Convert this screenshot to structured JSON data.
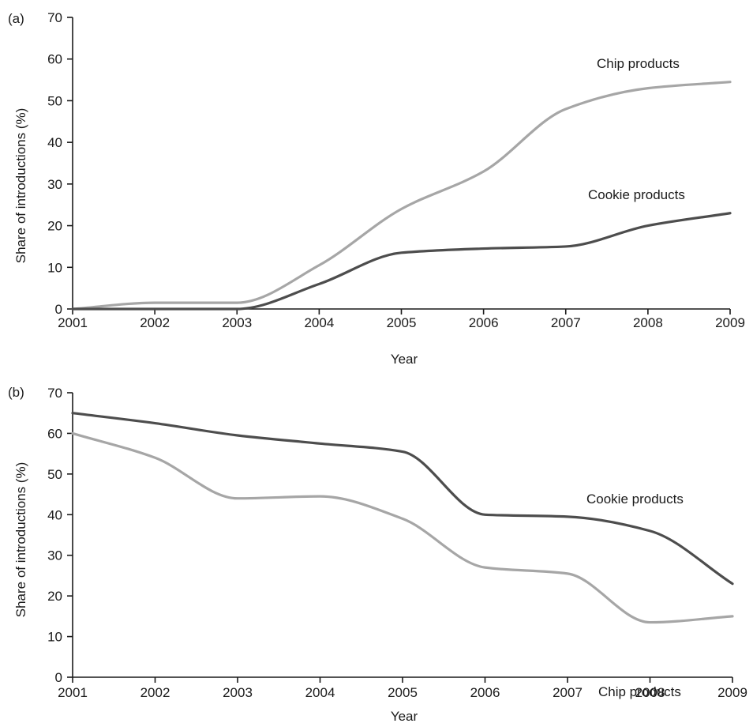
{
  "chart_data": [
    {
      "panel_label": "(a)",
      "type": "line",
      "xlabel": "Year",
      "ylabel": "Share of introductions (%)",
      "xlim": [
        2001,
        2009
      ],
      "ylim": [
        0,
        70
      ],
      "x_ticks": [
        "2001",
        "2002",
        "2003",
        "2004",
        "2005",
        "2006",
        "2007",
        "2008",
        "2009"
      ],
      "y_ticks": [
        "0",
        "10",
        "20",
        "30",
        "40",
        "50",
        "60",
        "70"
      ],
      "x": [
        2001,
        2002,
        2003,
        2004,
        2005,
        2006,
        2007,
        2008,
        2009
      ],
      "series": [
        {
          "name": "Chip products",
          "color": "#a6a6a6",
          "values": [
            0,
            1.5,
            1.5,
            10.5,
            24,
            33,
            48,
            53,
            54.5
          ]
        },
        {
          "name": "Cookie products",
          "color": "#4d4d4d",
          "values": [
            0,
            0,
            0,
            6,
            13.5,
            14.5,
            15,
            20,
            23
          ]
        }
      ]
    },
    {
      "panel_label": "(b)",
      "type": "line",
      "xlabel": "Year",
      "ylabel": "Share of introductions (%)",
      "xlim": [
        2001,
        2009
      ],
      "ylim": [
        0,
        70
      ],
      "x_ticks": [
        "2001",
        "2002",
        "2003",
        "2004",
        "2005",
        "2006",
        "2007",
        "2008",
        "2009"
      ],
      "y_ticks": [
        "0",
        "10",
        "20",
        "30",
        "40",
        "50",
        "60",
        "70"
      ],
      "x": [
        2001,
        2002,
        2003,
        2004,
        2005,
        2006,
        2007,
        2008,
        2009
      ],
      "series": [
        {
          "name": "Cookie products",
          "color": "#4d4d4d",
          "values": [
            65,
            62.5,
            59.5,
            57.5,
            55.5,
            40,
            39.5,
            36,
            23
          ]
        },
        {
          "name": "Chip products",
          "color": "#a6a6a6",
          "values": [
            60,
            54,
            44,
            44.5,
            39,
            27,
            25.5,
            13.5,
            15
          ]
        }
      ]
    }
  ]
}
